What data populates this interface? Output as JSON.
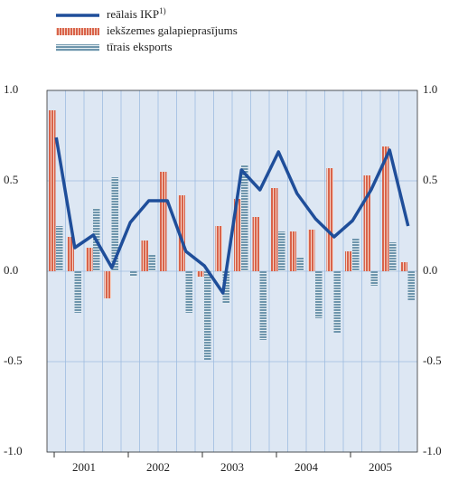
{
  "chart_data": {
    "type": "bar_line",
    "categories": [
      null,
      null,
      null,
      null,
      null,
      null,
      null,
      null,
      null,
      null,
      null,
      null,
      null,
      null,
      null,
      null,
      null,
      null,
      null,
      null
    ],
    "year_labels": [
      "2001",
      "2002",
      "2003",
      "2004",
      "2005"
    ],
    "series": [
      {
        "name": "reālais IKP",
        "name_note": "1)",
        "type": "line",
        "color": "#1f4e9a",
        "values": [
          0.74,
          0.13,
          0.2,
          0.02,
          0.27,
          0.39,
          0.39,
          0.11,
          0.03,
          -0.12,
          0.56,
          0.45,
          0.66,
          0.43,
          0.29,
          0.19,
          0.28,
          0.45,
          0.67,
          0.25
        ]
      },
      {
        "name": "iekšzemes galapieprasījums",
        "type": "bar",
        "color": "#d9634a",
        "values": [
          0.89,
          0.19,
          0.13,
          -0.15,
          0.0,
          0.17,
          0.55,
          0.42,
          -0.03,
          0.25,
          0.4,
          0.3,
          0.46,
          0.22,
          0.23,
          0.57,
          0.11,
          0.53,
          0.69,
          0.05
        ]
      },
      {
        "name": "tīrais eksports",
        "type": "bar",
        "color": "#6f96ad",
        "values": [
          0.25,
          -0.23,
          0.35,
          0.52,
          -0.03,
          0.09,
          0.0,
          -0.23,
          -0.49,
          -0.18,
          0.59,
          -0.38,
          0.22,
          0.08,
          -0.26,
          -0.34,
          0.18,
          -0.08,
          0.16,
          -0.16
        ]
      }
    ],
    "ylim": [
      -1,
      1
    ],
    "yticks": [
      {
        "value": 1,
        "label": "1.0"
      },
      {
        "value": 0.5,
        "label": "0.5"
      },
      {
        "value": 0,
        "label": "0.0"
      },
      {
        "value": -0.5,
        "label": "-0.5"
      },
      {
        "value": -1,
        "label": "-1.0"
      }
    ],
    "y2lim": [
      -1,
      1
    ],
    "y2ticks": [
      {
        "value": 1,
        "label": "1.0"
      },
      {
        "value": 0.5,
        "label": "0.5"
      },
      {
        "value": 0,
        "label": "0.0"
      },
      {
        "value": -0.5,
        "label": "-0.5"
      },
      {
        "value": -1,
        "label": "-1.0"
      }
    ],
    "grid": true,
    "legend": "top-left",
    "background": "#dde7f3"
  }
}
